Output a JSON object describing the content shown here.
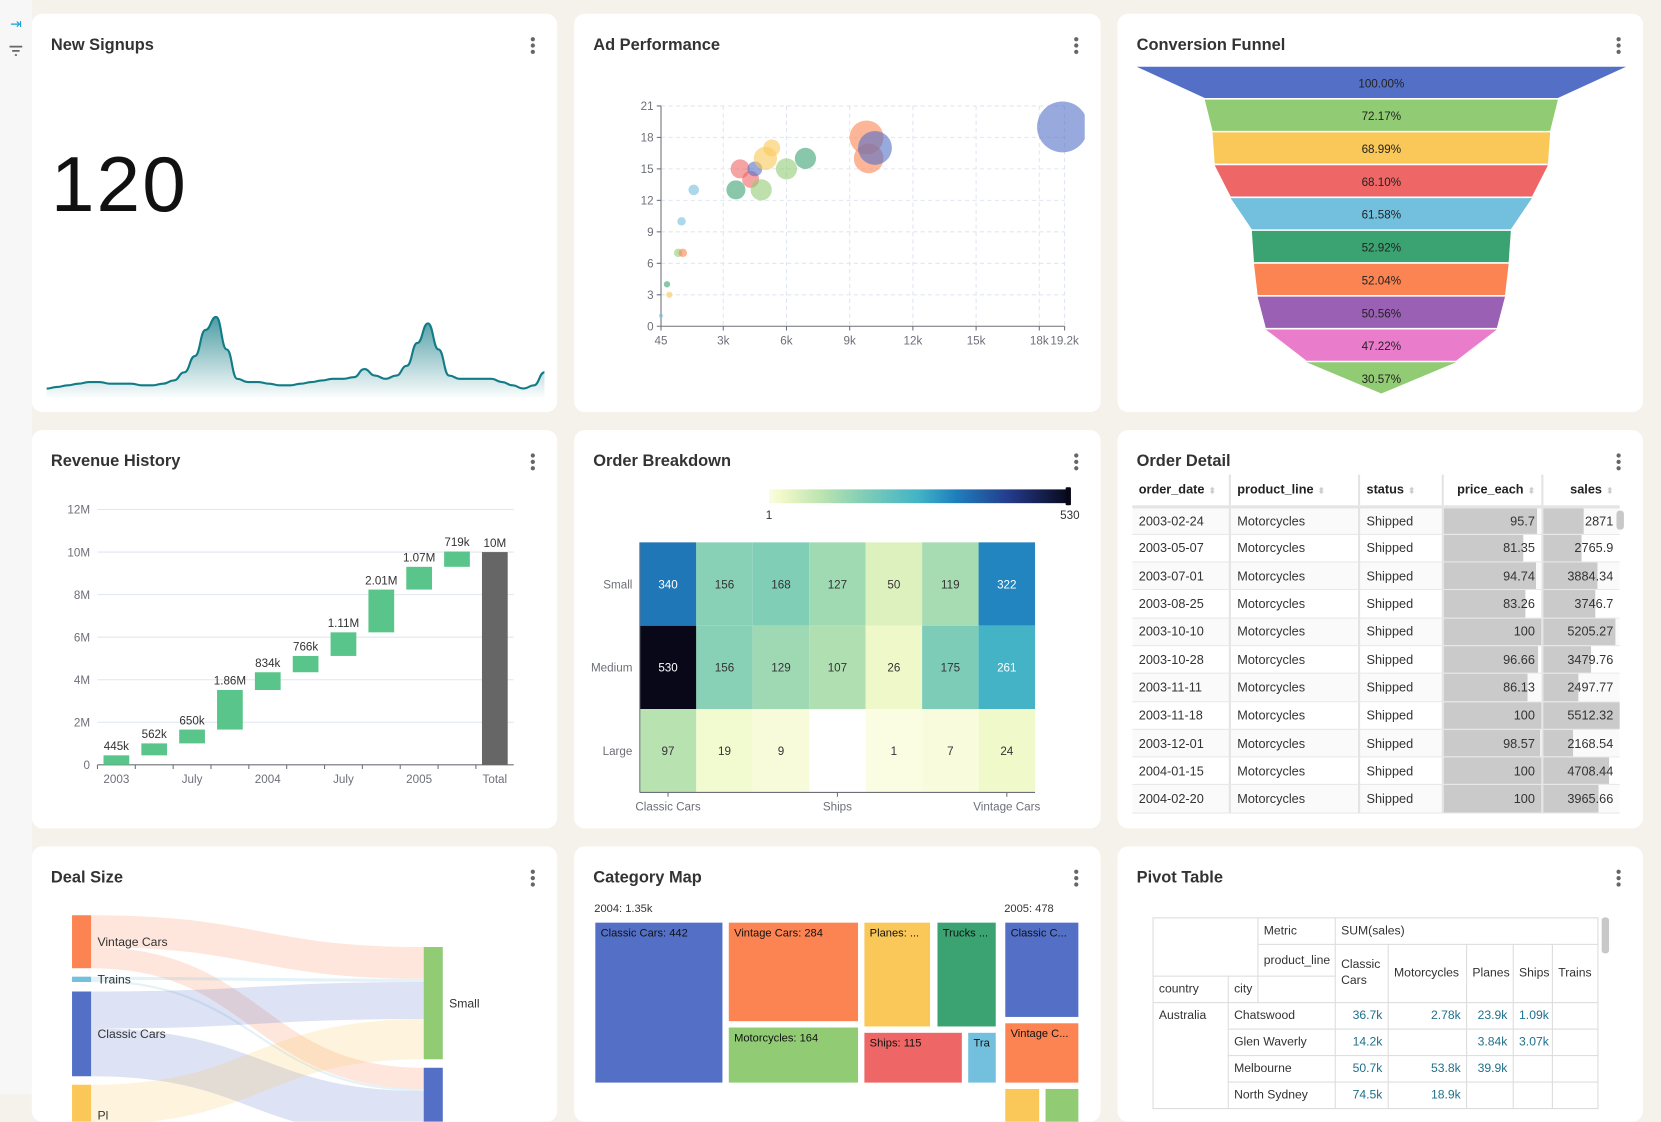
{
  "sidebar": {
    "items": [
      {
        "icon": "collapse-arrow-icon",
        "color": "#1ba0d8"
      },
      {
        "icon": "filter-icon",
        "color": "#666"
      }
    ]
  },
  "cards": {
    "signups": {
      "title": "New Signups",
      "value": "120",
      "sparkline": [
        2,
        2.5,
        3,
        3.5,
        4,
        4,
        3.5,
        3.5,
        3.5,
        3,
        3,
        3.5,
        4.5,
        7,
        12,
        20,
        24,
        14,
        5,
        4,
        4,
        3.5,
        3,
        3,
        3.5,
        4,
        4.5,
        5,
        5,
        5.5,
        8,
        6,
        5,
        6,
        9,
        16,
        22,
        14,
        6,
        5,
        5,
        5,
        5,
        4,
        3,
        2,
        3,
        7
      ],
      "color": "#127c86"
    },
    "ad": {
      "title": "Ad Performance"
    },
    "funnel": {
      "title": "Conversion Funnel"
    },
    "revenue": {
      "title": "Revenue History"
    },
    "breakdown": {
      "title": "Order Breakdown"
    },
    "detail": {
      "title": "Order Detail",
      "columns": [
        "order_date",
        "product_line",
        "status",
        "price_each",
        "sales"
      ],
      "rows": [
        [
          "2003-02-24",
          "Motorcycles",
          "Shipped",
          95.7,
          2871
        ],
        [
          "2003-05-07",
          "Motorcycles",
          "Shipped",
          81.35,
          2765.9
        ],
        [
          "2003-07-01",
          "Motorcycles",
          "Shipped",
          94.74,
          3884.34
        ],
        [
          "2003-08-25",
          "Motorcycles",
          "Shipped",
          83.26,
          3746.7
        ],
        [
          "2003-10-10",
          "Motorcycles",
          "Shipped",
          100,
          5205.27
        ],
        [
          "2003-10-28",
          "Motorcycles",
          "Shipped",
          96.66,
          3479.76
        ],
        [
          "2003-11-11",
          "Motorcycles",
          "Shipped",
          86.13,
          2497.77
        ],
        [
          "2003-11-18",
          "Motorcycles",
          "Shipped",
          100,
          5512.32
        ],
        [
          "2003-12-01",
          "Motorcycles",
          "Shipped",
          98.57,
          2168.54
        ],
        [
          "2004-01-15",
          "Motorcycles",
          "Shipped",
          100,
          4708.44
        ],
        [
          "2004-02-20",
          "Motorcycles",
          "Shipped",
          100,
          3965.66
        ]
      ]
    },
    "deal": {
      "title": "Deal Size"
    },
    "category": {
      "title": "Category Map"
    },
    "pivot": {
      "title": "Pivot Table",
      "metric_label": "Metric",
      "metric": "SUM(sales)",
      "col_dim": "product_line",
      "row_dims": [
        "country",
        "city"
      ],
      "columns": [
        "Classic Cars",
        "Motorcycles",
        "Planes",
        "Ships",
        "Trains"
      ],
      "country": "Australia",
      "rows": [
        {
          "city": "Chatswood",
          "values": [
            "36.7k",
            "2.78k",
            "23.9k",
            "1.09k",
            ""
          ]
        },
        {
          "city": "Glen Waverly",
          "values": [
            "14.2k",
            "",
            "3.84k",
            "3.07k",
            ""
          ]
        },
        {
          "city": "Melbourne",
          "values": [
            "50.7k",
            "53.8k",
            "39.9k",
            "",
            ""
          ]
        },
        {
          "city": "North Sydney",
          "values": [
            "74.5k",
            "18.9k",
            "",
            "",
            ""
          ]
        }
      ]
    }
  },
  "palette": {
    "blue": "#5470c6",
    "green": "#3ba272",
    "lightgreen": "#91cc75",
    "yellow": "#fac858",
    "red": "#ee6666",
    "skyblue": "#73c0de",
    "orange": "#fc8452",
    "purple": "#9a60b4",
    "pink": "#ea7ccc"
  },
  "chart_data": [
    {
      "id": "ad",
      "type": "scatter",
      "xlim": [
        45,
        19200
      ],
      "ylim": [
        0,
        21
      ],
      "xticks": [
        "45",
        "3k",
        "6k",
        "9k",
        "12k",
        "15k",
        "18k",
        "19.2k"
      ],
      "xtick_values": [
        45,
        3000,
        6000,
        9000,
        12000,
        15000,
        18000,
        19200
      ],
      "yticks": [
        "0",
        "3",
        "6",
        "9",
        "12",
        "15",
        "18",
        "21"
      ],
      "grid": true,
      "points": [
        {
          "x": 45,
          "y": 1,
          "size": 2,
          "color": "skyblue"
        },
        {
          "x": 330,
          "y": 4,
          "size": 3,
          "color": "green"
        },
        {
          "x": 440,
          "y": 3,
          "size": 3,
          "color": "yellow"
        },
        {
          "x": 860,
          "y": 7,
          "size": 4,
          "color": "lightgreen"
        },
        {
          "x": 1080,
          "y": 7,
          "size": 4,
          "color": "orange"
        },
        {
          "x": 1020,
          "y": 10,
          "size": 4,
          "color": "skyblue"
        },
        {
          "x": 1600,
          "y": 13,
          "size": 5,
          "color": "skyblue"
        },
        {
          "x": 3600,
          "y": 13,
          "size": 9,
          "color": "green"
        },
        {
          "x": 3800,
          "y": 15,
          "size": 9,
          "color": "red"
        },
        {
          "x": 4300,
          "y": 14,
          "size": 8,
          "color": "red"
        },
        {
          "x": 4500,
          "y": 15,
          "size": 7,
          "color": "blue"
        },
        {
          "x": 4800,
          "y": 13,
          "size": 10,
          "color": "lightgreen"
        },
        {
          "x": 5000,
          "y": 16,
          "size": 11,
          "color": "yellow"
        },
        {
          "x": 5300,
          "y": 17,
          "size": 8,
          "color": "yellow"
        },
        {
          "x": 6000,
          "y": 15,
          "size": 10,
          "color": "lightgreen"
        },
        {
          "x": 6900,
          "y": 16,
          "size": 10,
          "color": "green"
        },
        {
          "x": 9900,
          "y": 16,
          "size": 14,
          "color": "orange"
        },
        {
          "x": 9800,
          "y": 18,
          "size": 16,
          "color": "orange"
        },
        {
          "x": 10200,
          "y": 17,
          "size": 16,
          "color": "blue"
        },
        {
          "x": 19100,
          "y": 19,
          "size": 24,
          "color": "blue"
        }
      ]
    },
    {
      "id": "funnel",
      "type": "funnel",
      "labels": [
        "100.00%",
        "72.17%",
        "68.99%",
        "68.10%",
        "61.58%",
        "52.92%",
        "52.04%",
        "50.56%",
        "47.22%",
        "30.57%"
      ],
      "values": [
        100,
        72.17,
        68.99,
        68.1,
        61.58,
        52.92,
        52.04,
        50.56,
        47.22,
        30.57
      ],
      "colors": [
        "blue",
        "lightgreen",
        "yellow",
        "red",
        "skyblue",
        "green",
        "orange",
        "purple",
        "pink",
        "lightgreen"
      ]
    },
    {
      "id": "revenue",
      "type": "bar",
      "subtype": "waterfall",
      "ylim": [
        0,
        12000000
      ],
      "yticks": [
        "0",
        "2M",
        "4M",
        "6M",
        "8M",
        "10M",
        "12M"
      ],
      "xticks": [
        "2003",
        "",
        "July",
        "",
        "2004",
        "",
        "July",
        "",
        "2005",
        "",
        "Total"
      ],
      "values": [
        445000,
        562000,
        650000,
        1860000,
        834000,
        766000,
        1110000,
        2010000,
        1070000,
        719000,
        10000000
      ],
      "labels": [
        "445k",
        "562k",
        "650k",
        "1.86M",
        "834k",
        "766k",
        "1.11M",
        "2.01M",
        "1.07M",
        "719k",
        "10M"
      ],
      "increase_color": "#5ac58a",
      "total_color": "#666666"
    },
    {
      "id": "breakdown",
      "type": "heatmap",
      "rows": [
        "Small",
        "Medium",
        "Large"
      ],
      "xticks": [
        "Classic Cars",
        "",
        "",
        "Ships",
        "",
        "",
        "Vintage Cars"
      ],
      "values": [
        [
          340,
          156,
          168,
          127,
          50,
          119,
          322
        ],
        [
          530,
          156,
          129,
          107,
          26,
          175,
          261
        ],
        [
          97,
          19,
          9,
          null,
          1,
          7,
          24
        ]
      ],
      "range": [
        1,
        530
      ],
      "range_labels": [
        "1",
        "530"
      ]
    },
    {
      "id": "deal",
      "type": "sankey",
      "nodes": [
        {
          "name": "Vintage Cars",
          "color": "orange"
        },
        {
          "name": "Trains",
          "color": "skyblue"
        },
        {
          "name": "Classic Cars",
          "color": "blue"
        },
        {
          "name": "Pl",
          "color": "yellow"
        },
        {
          "name": "Small",
          "color": "lightgreen"
        },
        {
          "name": "",
          "color": "blue"
        }
      ],
      "links": [
        [
          "Vintage Cars",
          "Small",
          30
        ],
        [
          "Vintage Cars",
          "",
          20
        ],
        [
          "Trains",
          "Small",
          3
        ],
        [
          "Trains",
          "",
          2
        ],
        [
          "Classic Cars",
          "Small",
          35
        ],
        [
          "Classic Cars",
          "",
          45
        ],
        [
          "Pl",
          "Small",
          38
        ],
        [
          "Pl",
          "",
          20
        ]
      ]
    },
    {
      "id": "category",
      "type": "treemap",
      "groups": [
        {
          "label": "2004: 1.35k",
          "items": [
            {
              "label": "Classic Cars: 442",
              "color": "blue"
            },
            {
              "label": "Vintage Cars: 284",
              "color": "orange"
            },
            {
              "label": "Motorcycles: 164",
              "color": "lightgreen"
            },
            {
              "label": "Planes: ...",
              "color": "yellow"
            },
            {
              "label": "Trucks ...",
              "color": "green"
            },
            {
              "label": "Ships: 115",
              "color": "red"
            },
            {
              "label": "Tra",
              "color": "skyblue"
            }
          ]
        },
        {
          "label": "2005: 478",
          "items": [
            {
              "label": "Classic C...",
              "color": "blue"
            },
            {
              "label": "Vintage C...",
              "color": "orange"
            },
            {
              "label": "",
              "color": "yellow"
            },
            {
              "label": "",
              "color": "lightgreen"
            }
          ]
        }
      ]
    }
  ]
}
